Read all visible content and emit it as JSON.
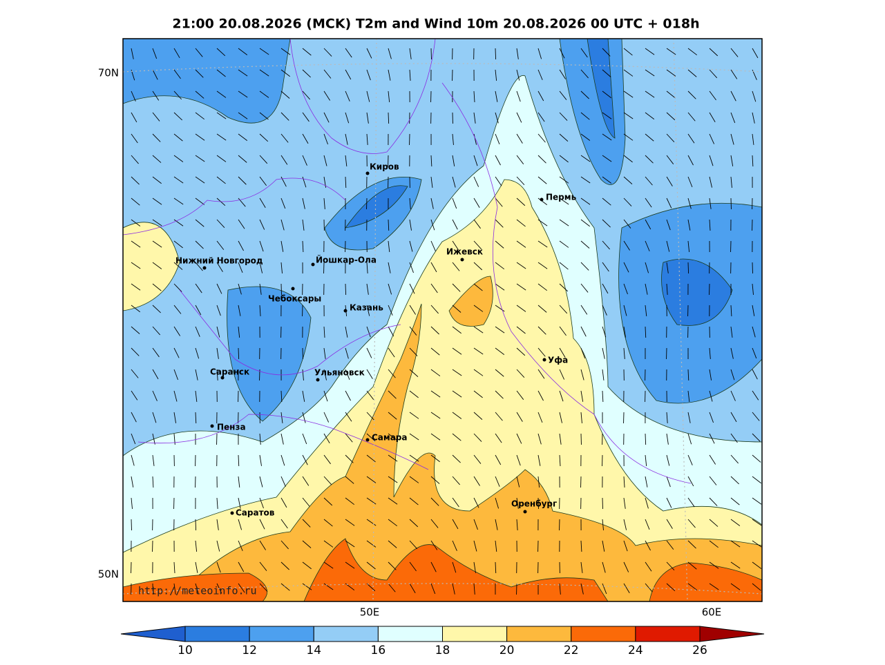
{
  "title": "21:00 20.08.2026 (MCK) T2m and Wind 10m 20.08.2026 00 UTC + 018h",
  "axes": {
    "lat_labels": [
      "70N",
      "50N"
    ],
    "lon_labels": [
      "50E",
      "60E"
    ]
  },
  "cities": [
    "Киров",
    "Пермь",
    "Ижевск",
    "Нижний Новгород",
    "Йошкар-Ола",
    "Чебоксары",
    "Казань",
    "Уфа",
    "Саранск",
    "Ульяновск",
    "Пенза",
    "Самара",
    "Оренбург",
    "Саратов"
  ],
  "watermark": "http://meteoinfo.ru",
  "colorbar": {
    "ticks": [
      10,
      12,
      14,
      16,
      18,
      20,
      22,
      24,
      26
    ],
    "colors": [
      "#1f5fcf",
      "#2b7de0",
      "#4da0ef",
      "#94cdf6",
      "#e0ffff",
      "#fff7aa",
      "#fdb93d",
      "#fb6a08",
      "#e01a00",
      "#a00000"
    ]
  }
}
